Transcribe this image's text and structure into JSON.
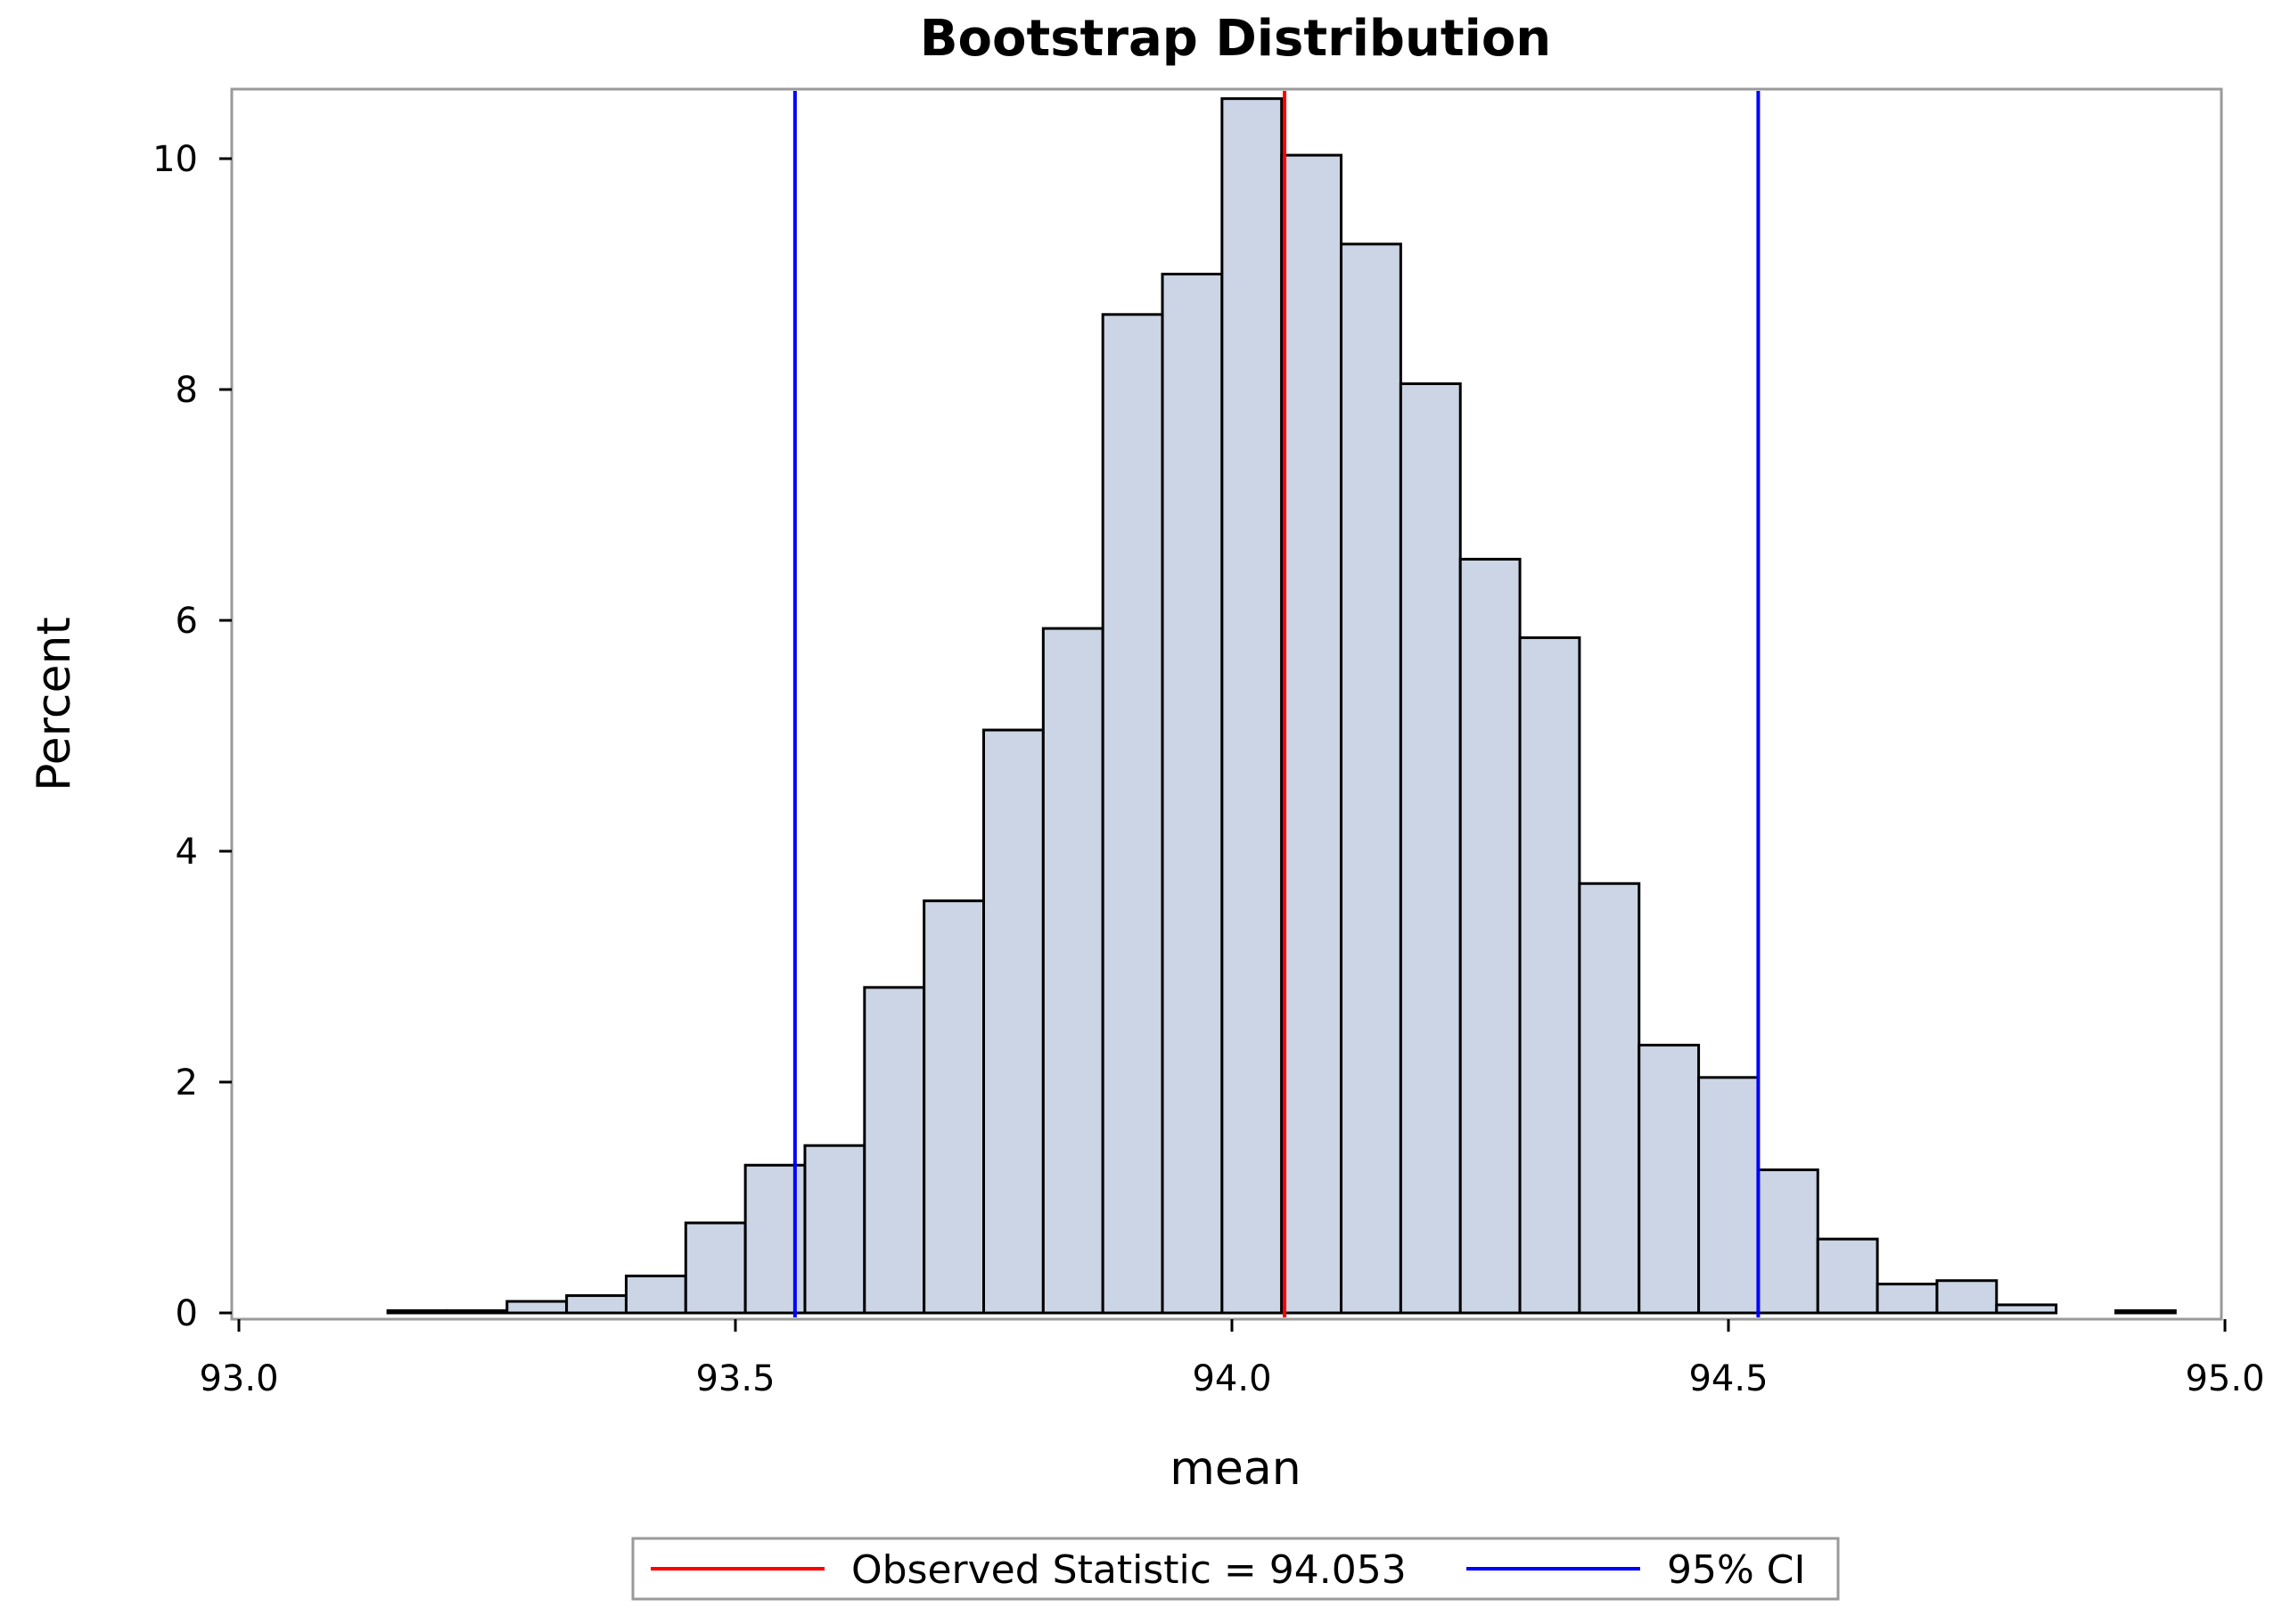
{
  "chart_data": {
    "type": "bar",
    "title": "Bootstrap Distribution",
    "xlabel": "mean",
    "ylabel": "Percent",
    "xlim": [
      93.0,
      95.0
    ],
    "ylim": [
      0,
      10.6
    ],
    "xticks": [
      "93.0",
      "93.5",
      "94.0",
      "94.5",
      "95.0"
    ],
    "yticks": [
      "0",
      "2",
      "4",
      "6",
      "8",
      "10"
    ],
    "bin_start": 93.15,
    "bin_width": 0.06,
    "values": [
      0.02,
      0.02,
      0.1,
      0.15,
      0.32,
      0.78,
      1.28,
      1.45,
      2.82,
      3.57,
      5.05,
      5.93,
      8.65,
      9.0,
      10.52,
      10.03,
      9.26,
      8.05,
      6.53,
      5.85,
      3.72,
      2.32,
      2.04,
      1.24,
      0.64,
      0.25,
      0.28,
      0.07,
      0.0,
      0.02
    ],
    "fill_color": "#cbd5e5",
    "edge_color": "#000000",
    "reference_lines": [
      {
        "name": "Observed Statistic = 94.053",
        "value": 94.053,
        "color": "#ff0000"
      },
      {
        "name": "95% CI",
        "value": 93.56,
        "color": "#0000ff"
      },
      {
        "name": "95% CI",
        "value": 94.53,
        "color": "#0000ff"
      }
    ],
    "legend": {
      "placement": "bottom",
      "entries": [
        {
          "label": "Observed Statistic = 94.053",
          "color": "#ff0000"
        },
        {
          "label": "95% CI",
          "color": "#0000ff"
        }
      ]
    },
    "grid": false
  }
}
